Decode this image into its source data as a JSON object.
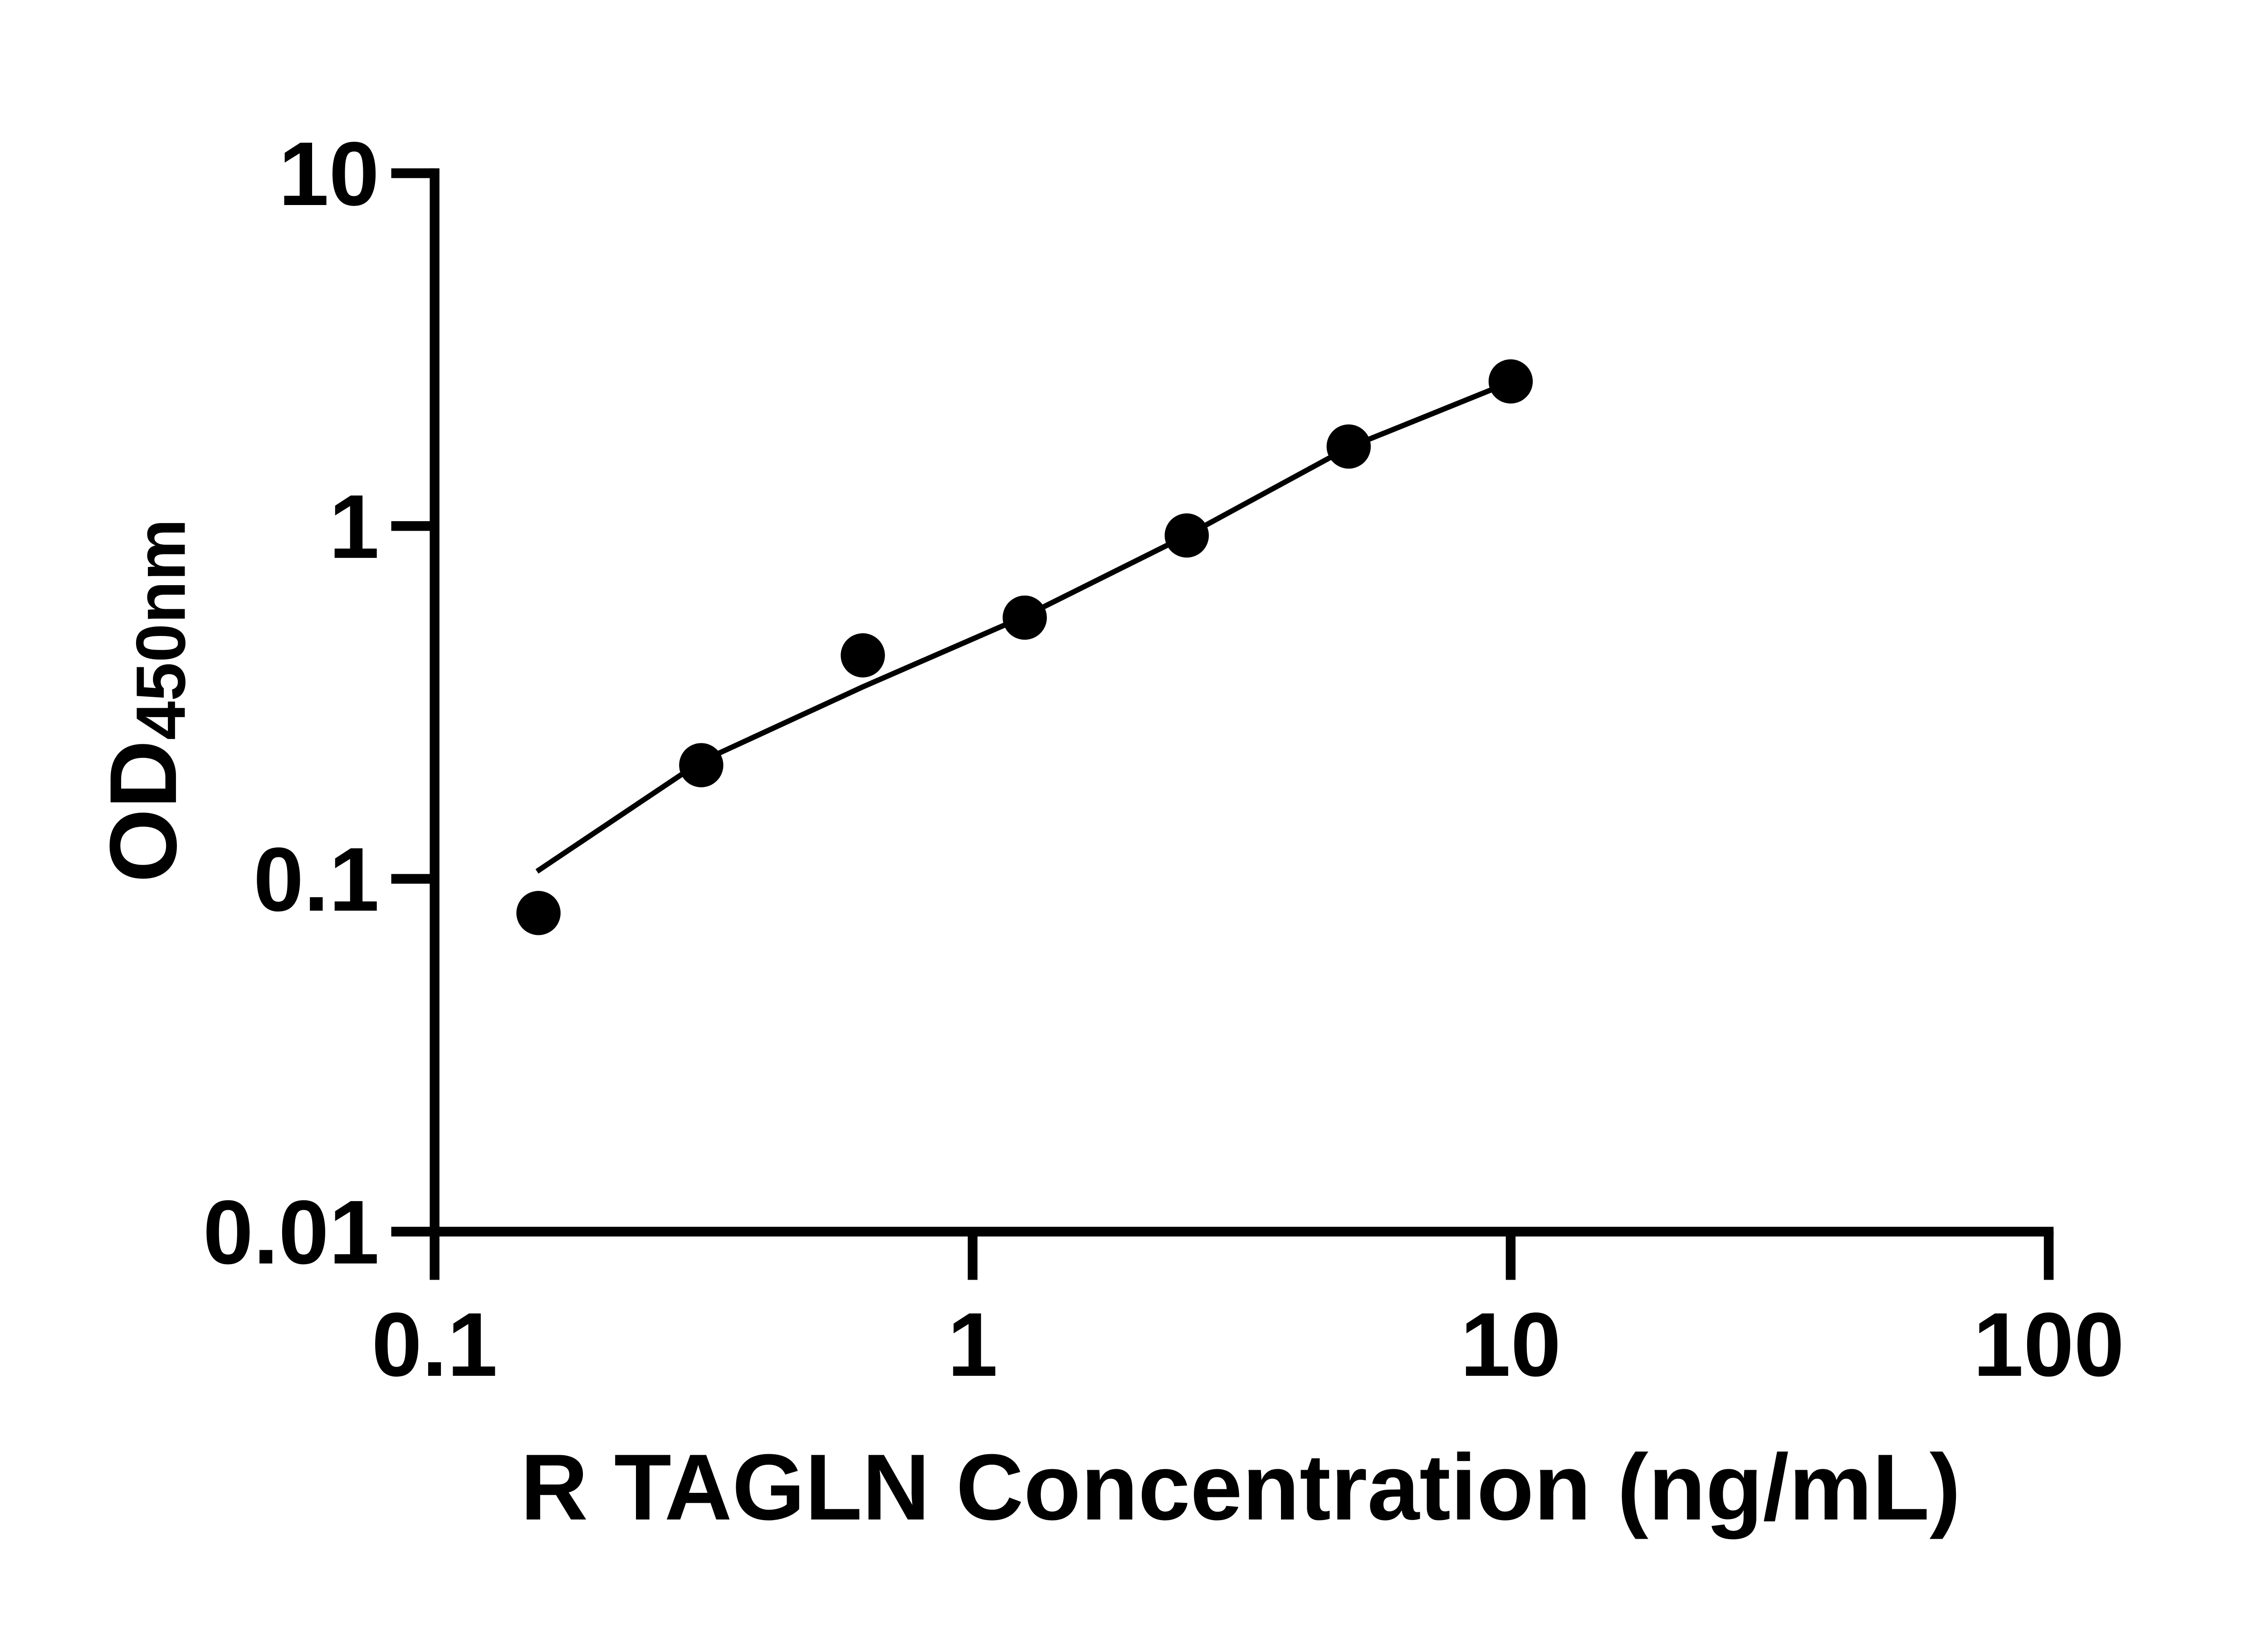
{
  "chart_data": {
    "type": "scatter",
    "xlabel": "R TAGLN Concentration (ng/mL)",
    "ylabel_main": "OD",
    "ylabel_sub": "450nm",
    "x_scale": "log",
    "y_scale": "log",
    "xlim": [
      0.1,
      100
    ],
    "ylim": [
      0.01,
      10
    ],
    "x_tick_labels": [
      "0.1",
      "1",
      "10",
      "100"
    ],
    "x_tick_values": [
      0.1,
      1,
      10,
      100
    ],
    "y_tick_labels": [
      "10",
      "1",
      "0.1",
      "0.01"
    ],
    "y_tick_values": [
      10,
      1,
      0.1,
      0.01
    ],
    "grid": false,
    "legend": false,
    "background_color": "#ffffff",
    "foreground_color": "#000000",
    "series": [
      {
        "name": "standard-curve-points",
        "marker": "circle",
        "color": "#000000",
        "points": [
          {
            "x": 0.156,
            "y": 0.08
          },
          {
            "x": 0.313,
            "y": 0.21
          },
          {
            "x": 0.625,
            "y": 0.43
          },
          {
            "x": 1.25,
            "y": 0.55
          },
          {
            "x": 2.5,
            "y": 0.94
          },
          {
            "x": 5,
            "y": 1.68
          },
          {
            "x": 10,
            "y": 2.57
          }
        ]
      }
    ],
    "fit_line": {
      "color": "#000000",
      "x": [
        0.155,
        0.3125,
        0.625,
        1.25,
        2.5,
        5,
        10
      ],
      "y": [
        0.105,
        0.215,
        0.35,
        0.555,
        0.94,
        1.67,
        2.56
      ]
    }
  }
}
